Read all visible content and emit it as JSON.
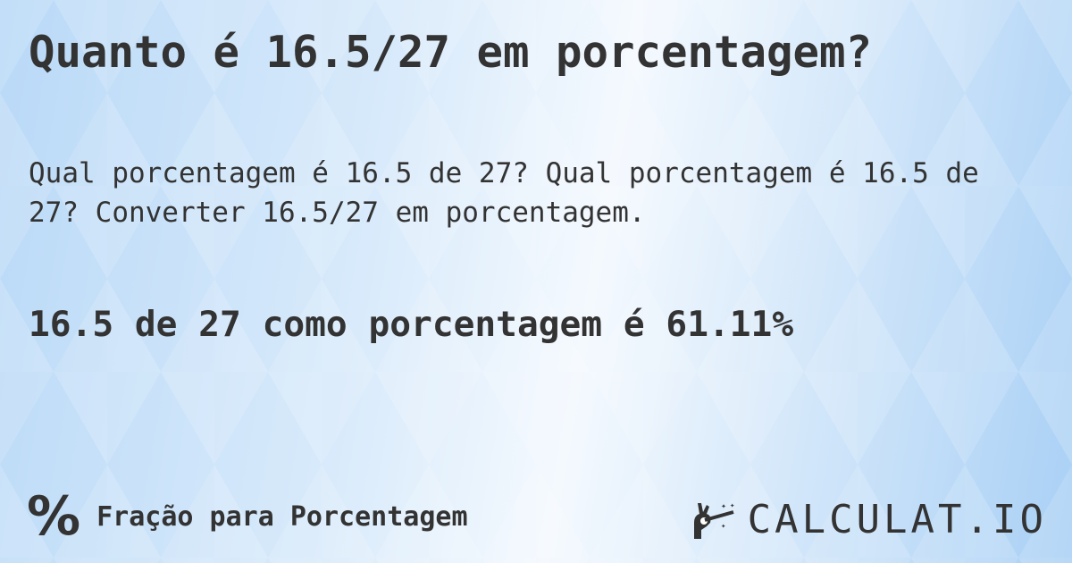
{
  "title": "Quanto é 16.5/27 em porcentagem?",
  "description": "Qual porcentagem é 16.5 de 27? Qual porcentagem é 16.5 de 27? Converter 16.5/27 em porcentagem.",
  "result": "16.5 de 27 como porcentagem é 61.11%",
  "footer": {
    "icon": "percent-icon",
    "category": "Fração para Porcentagem"
  },
  "logo": {
    "text": "CALCULAT.IO",
    "icon": "magic-hand-wand-icon"
  },
  "colors": {
    "text": "#333333",
    "background": "#d8eafb"
  }
}
